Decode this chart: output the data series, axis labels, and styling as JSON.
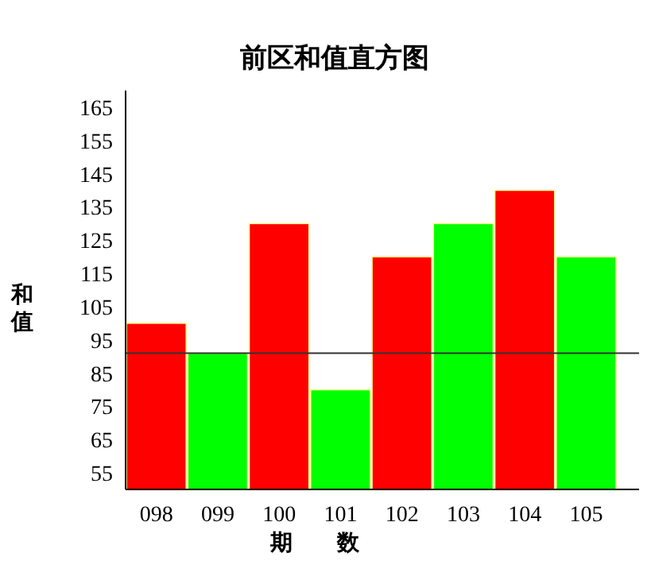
{
  "chart_data": {
    "type": "bar",
    "title": "前区和值直方图",
    "xlabel": "期　　数",
    "ylabel": "和值",
    "categories": [
      "098",
      "099",
      "100",
      "101",
      "102",
      "103",
      "104",
      "105"
    ],
    "values": [
      100,
      91,
      130,
      80,
      120,
      130,
      140,
      120
    ],
    "colors": [
      "#ff0000",
      "#00ff00",
      "#ff0000",
      "#00ff00",
      "#ff0000",
      "#00ff00",
      "#ff0000",
      "#00ff00"
    ],
    "ylim": [
      50,
      170
    ],
    "yticks": [
      55,
      65,
      75,
      85,
      95,
      105,
      115,
      125,
      135,
      145,
      155,
      165
    ],
    "ref_lines": [
      {
        "axis": "y",
        "value": 91,
        "color": "#333333"
      }
    ],
    "grid": false
  }
}
